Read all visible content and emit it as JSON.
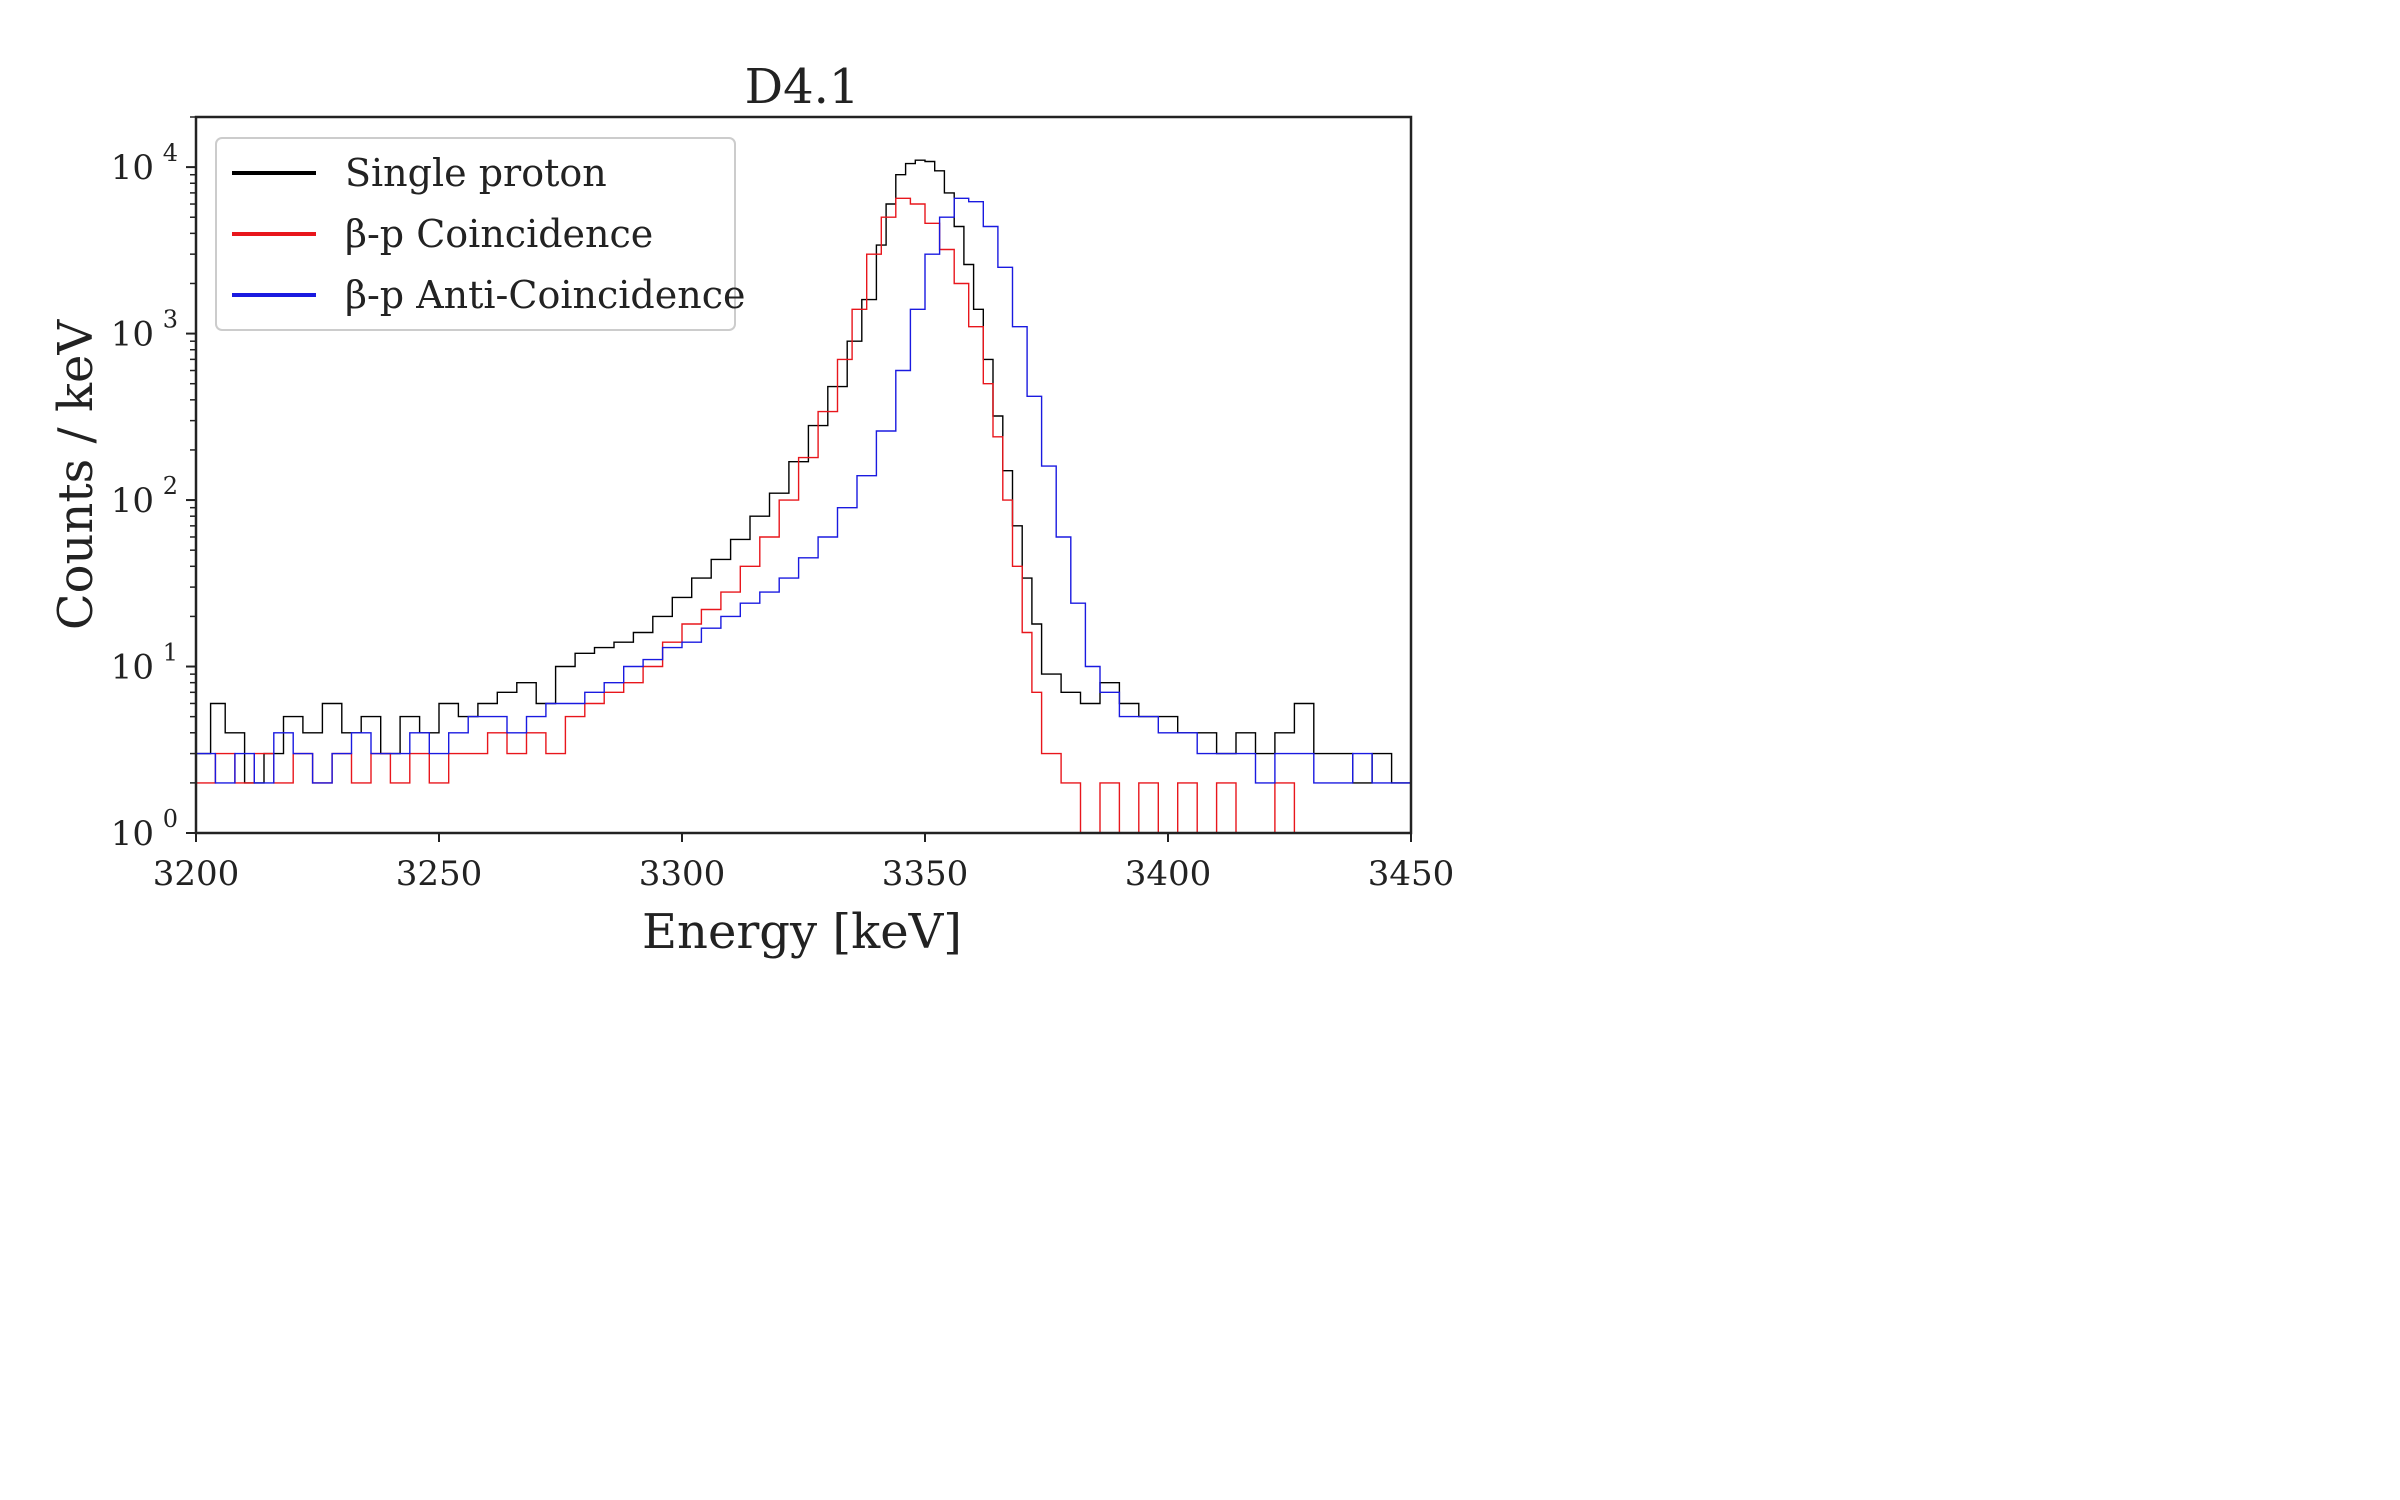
{
  "chart_data": {
    "type": "line",
    "title": "D4.1",
    "xlabel": "Energy [keV]",
    "ylabel": "Counts / keV",
    "xlim": [
      3200,
      3450
    ],
    "ylim": [
      1,
      20000
    ],
    "y_scale": "log",
    "x_ticks": [
      "3200",
      "3250",
      "3300",
      "3350",
      "3400",
      "3450"
    ],
    "y_ticks": [
      {
        "base": "10",
        "exp": "0"
      },
      {
        "base": "10",
        "exp": "1"
      },
      {
        "base": "10",
        "exp": "2"
      },
      {
        "base": "10",
        "exp": "3"
      },
      {
        "base": "10",
        "exp": "4"
      }
    ],
    "grid": false,
    "legend_position": "top-left",
    "step": "histogram",
    "series": [
      {
        "name": "Single proton",
        "color": "#000000",
        "points": [
          [
            3200,
            3
          ],
          [
            3203,
            6
          ],
          [
            3206,
            4
          ],
          [
            3210,
            2
          ],
          [
            3214,
            3
          ],
          [
            3218,
            5
          ],
          [
            3222,
            4
          ],
          [
            3226,
            6
          ],
          [
            3230,
            4
          ],
          [
            3234,
            5
          ],
          [
            3238,
            3
          ],
          [
            3242,
            5
          ],
          [
            3246,
            4
          ],
          [
            3250,
            6
          ],
          [
            3254,
            5
          ],
          [
            3258,
            6
          ],
          [
            3262,
            7
          ],
          [
            3266,
            8
          ],
          [
            3270,
            6
          ],
          [
            3274,
            10
          ],
          [
            3278,
            12
          ],
          [
            3282,
            13
          ],
          [
            3286,
            14
          ],
          [
            3290,
            16
          ],
          [
            3294,
            20
          ],
          [
            3298,
            26
          ],
          [
            3302,
            34
          ],
          [
            3306,
            44
          ],
          [
            3310,
            58
          ],
          [
            3314,
            80
          ],
          [
            3318,
            110
          ],
          [
            3322,
            170
          ],
          [
            3326,
            280
          ],
          [
            3330,
            480
          ],
          [
            3334,
            900
          ],
          [
            3337,
            1600
          ],
          [
            3340,
            3400
          ],
          [
            3342,
            6000
          ],
          [
            3344,
            9000
          ],
          [
            3346,
            10500
          ],
          [
            3348,
            11000
          ],
          [
            3350,
            10800
          ],
          [
            3352,
            9500
          ],
          [
            3354,
            7000
          ],
          [
            3356,
            4400
          ],
          [
            3358,
            2600
          ],
          [
            3360,
            1400
          ],
          [
            3362,
            700
          ],
          [
            3364,
            320
          ],
          [
            3366,
            150
          ],
          [
            3368,
            70
          ],
          [
            3370,
            34
          ],
          [
            3372,
            18
          ],
          [
            3374,
            9
          ],
          [
            3378,
            7
          ],
          [
            3382,
            6
          ],
          [
            3386,
            8
          ],
          [
            3390,
            6
          ],
          [
            3394,
            5
          ],
          [
            3398,
            5
          ],
          [
            3402,
            4
          ],
          [
            3406,
            4
          ],
          [
            3410,
            3
          ],
          [
            3414,
            4
          ],
          [
            3418,
            3
          ],
          [
            3422,
            4
          ],
          [
            3426,
            6
          ],
          [
            3430,
            3
          ],
          [
            3434,
            3
          ],
          [
            3438,
            2
          ],
          [
            3442,
            3
          ],
          [
            3446,
            2
          ],
          [
            3450,
            3
          ]
        ]
      },
      {
        "name": "β-p Coincidence",
        "color": "#e8161c",
        "points": [
          [
            3200,
            2
          ],
          [
            3204,
            3
          ],
          [
            3208,
            2
          ],
          [
            3212,
            3
          ],
          [
            3216,
            2
          ],
          [
            3220,
            3
          ],
          [
            3224,
            2
          ],
          [
            3228,
            3
          ],
          [
            3232,
            2
          ],
          [
            3236,
            3
          ],
          [
            3240,
            2
          ],
          [
            3244,
            3
          ],
          [
            3248,
            2
          ],
          [
            3252,
            3
          ],
          [
            3256,
            3
          ],
          [
            3260,
            4
          ],
          [
            3264,
            3
          ],
          [
            3268,
            4
          ],
          [
            3272,
            3
          ],
          [
            3276,
            5
          ],
          [
            3280,
            6
          ],
          [
            3284,
            7
          ],
          [
            3288,
            8
          ],
          [
            3292,
            10
          ],
          [
            3296,
            14
          ],
          [
            3300,
            18
          ],
          [
            3304,
            22
          ],
          [
            3308,
            28
          ],
          [
            3312,
            40
          ],
          [
            3316,
            60
          ],
          [
            3320,
            100
          ],
          [
            3324,
            180
          ],
          [
            3328,
            340
          ],
          [
            3332,
            700
          ],
          [
            3335,
            1400
          ],
          [
            3338,
            3000
          ],
          [
            3341,
            5000
          ],
          [
            3344,
            6500
          ],
          [
            3347,
            6000
          ],
          [
            3350,
            4600
          ],
          [
            3353,
            3200
          ],
          [
            3356,
            2000
          ],
          [
            3359,
            1100
          ],
          [
            3362,
            500
          ],
          [
            3364,
            240
          ],
          [
            3366,
            100
          ],
          [
            3368,
            40
          ],
          [
            3370,
            16
          ],
          [
            3372,
            7
          ],
          [
            3374,
            3
          ],
          [
            3378,
            2
          ],
          [
            3382,
            1
          ],
          [
            3386,
            2
          ],
          [
            3390,
            1
          ],
          [
            3394,
            2
          ],
          [
            3398,
            1
          ],
          [
            3402,
            2
          ],
          [
            3406,
            1
          ],
          [
            3410,
            2
          ],
          [
            3414,
            1
          ],
          [
            3418,
            1
          ],
          [
            3422,
            2
          ],
          [
            3426,
            1
          ],
          [
            3430,
            1
          ],
          [
            3434,
            1
          ],
          [
            3438,
            1
          ],
          [
            3442,
            1
          ],
          [
            3446,
            1
          ],
          [
            3450,
            1
          ]
        ]
      },
      {
        "name": "β-p Anti-Coincidence",
        "color": "#1a1ae0",
        "points": [
          [
            3200,
            3
          ],
          [
            3204,
            2
          ],
          [
            3208,
            3
          ],
          [
            3212,
            2
          ],
          [
            3216,
            4
          ],
          [
            3220,
            3
          ],
          [
            3224,
            2
          ],
          [
            3228,
            3
          ],
          [
            3232,
            4
          ],
          [
            3236,
            3
          ],
          [
            3240,
            3
          ],
          [
            3244,
            4
          ],
          [
            3248,
            3
          ],
          [
            3252,
            4
          ],
          [
            3256,
            5
          ],
          [
            3260,
            5
          ],
          [
            3264,
            4
          ],
          [
            3268,
            5
          ],
          [
            3272,
            6
          ],
          [
            3276,
            6
          ],
          [
            3280,
            7
          ],
          [
            3284,
            8
          ],
          [
            3288,
            10
          ],
          [
            3292,
            11
          ],
          [
            3296,
            13
          ],
          [
            3300,
            14
          ],
          [
            3304,
            17
          ],
          [
            3308,
            20
          ],
          [
            3312,
            24
          ],
          [
            3316,
            28
          ],
          [
            3320,
            34
          ],
          [
            3324,
            45
          ],
          [
            3328,
            60
          ],
          [
            3332,
            90
          ],
          [
            3336,
            140
          ],
          [
            3340,
            260
          ],
          [
            3344,
            600
          ],
          [
            3347,
            1400
          ],
          [
            3350,
            3000
          ],
          [
            3353,
            5000
          ],
          [
            3356,
            6500
          ],
          [
            3359,
            6200
          ],
          [
            3362,
            4400
          ],
          [
            3365,
            2500
          ],
          [
            3368,
            1100
          ],
          [
            3371,
            420
          ],
          [
            3374,
            160
          ],
          [
            3377,
            60
          ],
          [
            3380,
            24
          ],
          [
            3383,
            10
          ],
          [
            3386,
            7
          ],
          [
            3390,
            5
          ],
          [
            3394,
            5
          ],
          [
            3398,
            4
          ],
          [
            3402,
            4
          ],
          [
            3406,
            3
          ],
          [
            3410,
            3
          ],
          [
            3414,
            3
          ],
          [
            3418,
            2
          ],
          [
            3422,
            3
          ],
          [
            3426,
            3
          ],
          [
            3430,
            2
          ],
          [
            3434,
            2
          ],
          [
            3438,
            3
          ],
          [
            3442,
            2
          ],
          [
            3446,
            2
          ],
          [
            3450,
            3
          ]
        ]
      }
    ]
  }
}
